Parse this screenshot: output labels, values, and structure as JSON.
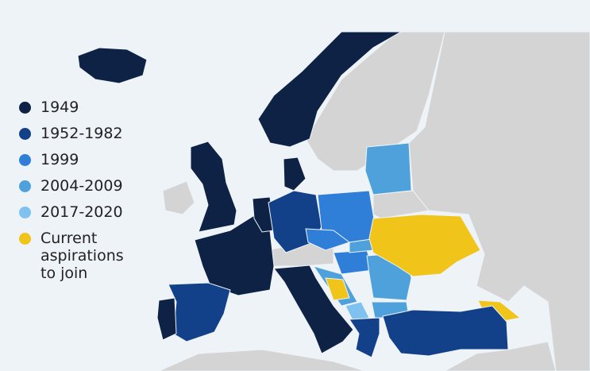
{
  "legend": {
    "items": [
      {
        "label": "1949",
        "color": "#0d2245"
      },
      {
        "label": "1952-1982",
        "color": "#12418a"
      },
      {
        "label": "1999",
        "color": "#2f7fd8"
      },
      {
        "label": "2004-2009",
        "color": "#4ea1db"
      },
      {
        "label": "2017-2020",
        "color": "#7fc2ef"
      },
      {
        "label": "Current aspirations to join",
        "color": "#f0c419"
      }
    ]
  }
}
